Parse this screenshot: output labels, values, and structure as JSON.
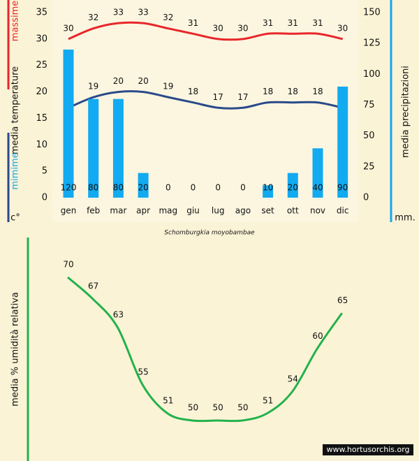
{
  "chart_data": [
    {
      "type": "bar_line",
      "title": "Schomburgkia moyobambae",
      "y_label_max": "massime",
      "y_label": "media  temperature",
      "y_label_min": "mimime",
      "y_unit": "c°",
      "y2_label": "media  precipitazioni",
      "y2_unit": "mm.",
      "categories": [
        "gen",
        "feb",
        "mar",
        "apr",
        "mag",
        "giu",
        "lug",
        "ago",
        "set",
        "ott",
        "nov",
        "dic"
      ],
      "series": [
        {
          "name": "massime",
          "type": "line",
          "color": "#e8262a",
          "values": [
            30,
            32,
            33,
            33,
            32,
            31,
            30,
            30,
            31,
            31,
            31,
            30
          ]
        },
        {
          "name": "minime",
          "type": "line",
          "color": "#2a4a8a",
          "values": [
            17,
            19,
            20,
            20,
            19,
            18,
            17,
            17,
            18,
            18,
            18,
            17
          ]
        },
        {
          "name": "precipitazioni",
          "type": "bar",
          "axis": "y2",
          "color": "#12aaf0",
          "values": [
            120,
            80,
            80,
            20,
            0,
            0,
            0,
            0,
            10,
            20,
            40,
            90
          ]
        }
      ],
      "ylim": [
        0,
        35
      ],
      "yticks": [
        0,
        5,
        10,
        15,
        20,
        25,
        30,
        35
      ],
      "y2lim": [
        0,
        150
      ],
      "y2ticks": [
        0,
        25,
        50,
        75,
        100,
        125,
        150
      ]
    },
    {
      "type": "line",
      "y_label": "media %  umidità relativa",
      "series": [
        {
          "name": "umidità",
          "color": "#22b24c",
          "values": [
            70,
            67,
            63,
            55,
            51,
            50,
            50,
            50,
            51,
            54,
            60,
            65
          ]
        }
      ],
      "watermark": "www.hortusorchis.org"
    }
  ]
}
